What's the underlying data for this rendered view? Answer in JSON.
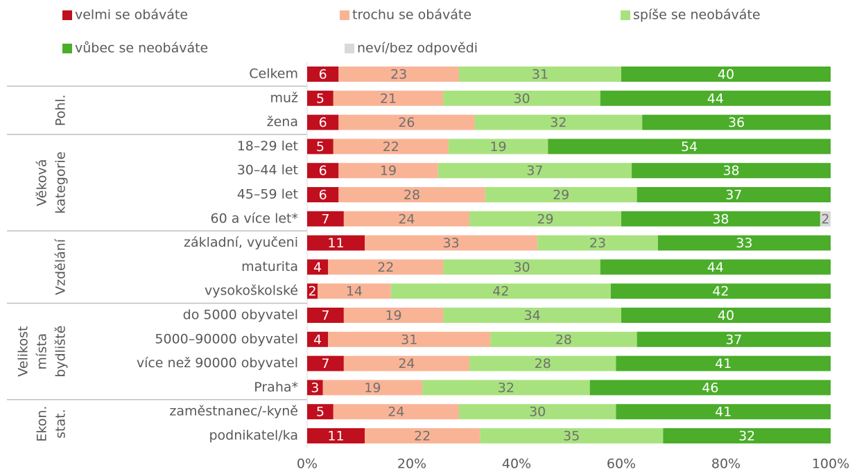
{
  "chart_data": {
    "type": "stacked-bar-100",
    "groups": [
      {
        "label_lines": [],
        "categories": [
          "Celkem"
        ]
      },
      {
        "label_lines": [
          "Pohl."
        ],
        "categories": [
          "muž",
          "žena"
        ]
      },
      {
        "label_lines": [
          "Věková",
          "kategorie"
        ],
        "categories": [
          "18–29 let",
          "30–44 let",
          "45–59 let",
          "60 a více let*"
        ]
      },
      {
        "label_lines": [
          "Vzdělání"
        ],
        "categories": [
          "základní, vyučeni",
          "maturita",
          "vysokoškolské"
        ]
      },
      {
        "label_lines": [
          "Velikost",
          "místa",
          "bydliště"
        ],
        "categories": [
          "do 5000 obyvatel",
          "5000–90000 obyvatel",
          "více než 90000 obyvatel",
          "Praha*"
        ]
      },
      {
        "label_lines": [
          "Ekon.",
          "stat."
        ],
        "categories": [
          "zaměstnanec/-kyně",
          "podnikatel/ka"
        ]
      }
    ],
    "series": [
      {
        "name": "velmi se obáváte",
        "color": "#c00f1e",
        "values": [
          6,
          5,
          6,
          5,
          6,
          6,
          7,
          11,
          4,
          2,
          7,
          4,
          7,
          3,
          5,
          11
        ]
      },
      {
        "name": "trochu se obáváte",
        "color": "#f9b496",
        "values": [
          23,
          21,
          26,
          22,
          19,
          28,
          24,
          33,
          22,
          14,
          19,
          31,
          24,
          19,
          24,
          22
        ]
      },
      {
        "name": "spíše se neobáváte",
        "color": "#a8e27e",
        "values": [
          31,
          30,
          32,
          19,
          37,
          29,
          29,
          23,
          30,
          42,
          34,
          28,
          28,
          32,
          30,
          35
        ]
      },
      {
        "name": "vůbec se neobáváte",
        "color": "#4bad2a",
        "values": [
          40,
          44,
          36,
          54,
          38,
          37,
          38,
          33,
          44,
          42,
          40,
          37,
          41,
          46,
          41,
          32
        ]
      },
      {
        "name": "neví/bez odpovědi",
        "color": "#d9d9d9",
        "values": [
          null,
          null,
          null,
          null,
          null,
          null,
          2,
          null,
          null,
          null,
          null,
          null,
          null,
          null,
          null,
          null
        ]
      }
    ],
    "xlim": [
      0,
      100
    ],
    "xticks": [
      {
        "value": 0,
        "label": "0%"
      },
      {
        "value": 20,
        "label": "20%"
      },
      {
        "value": 40,
        "label": "40%"
      },
      {
        "value": 60,
        "label": "60%"
      },
      {
        "value": 80,
        "label": "80%"
      },
      {
        "value": 100,
        "label": "100%"
      }
    ]
  }
}
